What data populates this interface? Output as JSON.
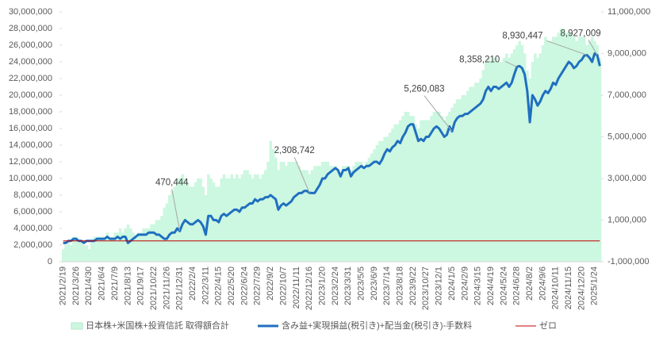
{
  "chart_data": {
    "type": "bar",
    "categories": [
      "2021/2/19",
      null,
      null,
      null,
      null,
      "2021/3/26",
      null,
      null,
      null,
      null,
      "2021/4/30",
      null,
      null,
      null,
      null,
      "2021/6/4",
      null,
      null,
      null,
      null,
      "2021/7/9",
      null,
      null,
      null,
      null,
      "2021/8/13",
      null,
      null,
      null,
      null,
      "2021/9/17",
      null,
      null,
      null,
      null,
      "2021/10/22",
      null,
      null,
      null,
      null,
      "2021/11/26",
      null,
      null,
      null,
      null,
      "2021/12/31",
      null,
      null,
      null,
      null,
      "2022/2/4",
      null,
      null,
      null,
      null,
      "2022/3/11",
      null,
      null,
      null,
      null,
      "2022/4/15",
      null,
      null,
      null,
      null,
      "2022/5/20",
      null,
      null,
      null,
      null,
      "2022/6/24",
      null,
      null,
      null,
      null,
      "2022/7/29",
      null,
      null,
      null,
      null,
      "2022/9/2",
      null,
      null,
      null,
      null,
      "2022/10/7",
      null,
      null,
      null,
      null,
      "2022/11/11",
      null,
      null,
      null,
      null,
      "2022/12/16",
      null,
      null,
      null,
      null,
      "2023/1/20",
      null,
      null,
      null,
      null,
      "2023/2/24",
      null,
      null,
      null,
      null,
      "2023/3/31",
      null,
      null,
      null,
      null,
      "2023/5/5",
      null,
      null,
      null,
      null,
      "2023/6/9",
      null,
      null,
      null,
      null,
      "2023/7/14",
      null,
      null,
      null,
      null,
      "2023/8/18",
      null,
      null,
      null,
      null,
      "2023/9/22",
      null,
      null,
      null,
      null,
      "2023/10/27",
      null,
      null,
      null,
      null,
      "2023/12/1",
      null,
      null,
      null,
      null,
      "2024/1/5",
      null,
      null,
      null,
      null,
      "2024/2/9",
      null,
      null,
      null,
      null,
      "2024/3/15",
      null,
      null,
      null,
      null,
      "2024/4/19",
      null,
      null,
      null,
      null,
      "2024/5/24",
      null,
      null,
      null,
      null,
      "2024/6/28",
      null,
      null,
      null,
      null,
      "2024/8/2",
      null,
      null,
      null,
      null,
      "2024/9/6",
      null,
      null,
      null,
      null,
      "2024/10/11",
      null,
      null,
      null,
      null,
      "2024/11/15",
      null,
      null,
      null,
      null,
      "2024/12/20",
      null,
      null,
      null,
      null,
      "2025/1/24",
      null,
      null
    ],
    "series": [
      {
        "name": "日本株+米国株+投資信託 取得額合計",
        "type": "bar",
        "color": "#ccf7e0",
        "axis": "y",
        "values": [
          1500000,
          2000000,
          2500000,
          2000000,
          3000000,
          3000000,
          2500000,
          2500000,
          2000000,
          2000000,
          1500000,
          2500000,
          3000000,
          3000000,
          3000000,
          3000000,
          3000000,
          3500000,
          3000000,
          3000000,
          3500000,
          3500000,
          4000000,
          3500000,
          4000000,
          4500000,
          4000000,
          3500000,
          3000000,
          3500000,
          3500000,
          4000000,
          4000000,
          4000000,
          4500000,
          4500000,
          5000000,
          5000000,
          5500000,
          6500000,
          7000000,
          8000000,
          8500000,
          9000000,
          10000000,
          10000000,
          10500000,
          10000000,
          9500000,
          9000000,
          9000000,
          9500000,
          10000000,
          10000000,
          9000000,
          8000000,
          10500000,
          10000000,
          9500000,
          9000000,
          9000000,
          10000000,
          10500000,
          10000000,
          10000000,
          10500000,
          10000000,
          10500000,
          10000000,
          10500000,
          11000000,
          11000000,
          10500000,
          10000000,
          10500000,
          10500000,
          10000000,
          10500000,
          11000000,
          12000000,
          14500000,
          13500000,
          12500000,
          11000000,
          12000000,
          12000000,
          11500000,
          12000000,
          12000000,
          12000000,
          12000000,
          11500000,
          11000000,
          11000000,
          11000000,
          10500000,
          11000000,
          11500000,
          11500000,
          11500000,
          12000000,
          12000000,
          12000000,
          11500000,
          11500000,
          11500000,
          11000000,
          10500000,
          11500000,
          11500000,
          11500000,
          11000000,
          11500000,
          12000000,
          12000000,
          12000000,
          11500000,
          12000000,
          12500000,
          13000000,
          13500000,
          14000000,
          14500000,
          14500000,
          15000000,
          15000000,
          15500000,
          16000000,
          16500000,
          16500000,
          17000000,
          17500000,
          18000000,
          18000000,
          17500000,
          17500000,
          16500000,
          16000000,
          17000000,
          17000000,
          17000000,
          17000000,
          17500000,
          18000000,
          18000000,
          18000000,
          17500000,
          17000000,
          17500000,
          18000000,
          18500000,
          19000000,
          19500000,
          19500000,
          20000000,
          20000000,
          20500000,
          21000000,
          21000000,
          21500000,
          21500000,
          22000000,
          23000000,
          24000000,
          24500000,
          24000000,
          24500000,
          24500000,
          24000000,
          24000000,
          24500000,
          25000000,
          24500000,
          25000000,
          25500000,
          26000000,
          26500000,
          26000000,
          25000000,
          23000000,
          22000000,
          24000000,
          25000000,
          24500000,
          25000000,
          26000000,
          27000000,
          26500000,
          26500000,
          27000000,
          27000000,
          27500000,
          28000000,
          28000000,
          27500000,
          27500000,
          27500000,
          27000000,
          26500000,
          27000000,
          27000000,
          27000000,
          26000000,
          26500000,
          27000000,
          26500000,
          26000000,
          24500000
        ]
      },
      {
        "name": "含み益+実現損益(税引き)+配当金(税引き)-手数料",
        "type": "line",
        "color": "#1f6fc0",
        "axis": "y2",
        "values": [
          -100000,
          -100000,
          0,
          0,
          100000,
          100000,
          0,
          0,
          -100000,
          0,
          0,
          0,
          0,
          100000,
          100000,
          100000,
          100000,
          200000,
          100000,
          100000,
          100000,
          200000,
          100000,
          200000,
          200000,
          -100000,
          0,
          100000,
          200000,
          300000,
          300000,
          300000,
          300000,
          400000,
          400000,
          400000,
          300000,
          300000,
          200000,
          100000,
          100000,
          300000,
          400000,
          400000,
          600000,
          470444,
          800000,
          1000000,
          900000,
          800000,
          800000,
          900000,
          1000000,
          900000,
          700000,
          300000,
          1200000,
          1200000,
          1000000,
          1000000,
          900000,
          1200000,
          1300000,
          1200000,
          1300000,
          1400000,
          1500000,
          1500000,
          1400000,
          1600000,
          1600000,
          1700000,
          1800000,
          1800000,
          2000000,
          1900000,
          2000000,
          2000000,
          2100000,
          2100000,
          2200000,
          2100000,
          2000000,
          1500000,
          1700000,
          1800000,
          1700000,
          1800000,
          1900000,
          2100000,
          2200000,
          2300000,
          2300000,
          2400000,
          2400000,
          2308742,
          2300000,
          2300000,
          2500000,
          2700000,
          3000000,
          3000000,
          3200000,
          3300000,
          3400000,
          3500000,
          3400000,
          3100000,
          3400000,
          3400000,
          3500000,
          3100000,
          3300000,
          3400000,
          3500000,
          3600000,
          3500000,
          3600000,
          3600000,
          3700000,
          3800000,
          3800000,
          3700000,
          3900000,
          4200000,
          4400000,
          4300000,
          4500000,
          4600000,
          4800000,
          4700000,
          5000000,
          5200000,
          5500000,
          5600000,
          5600000,
          5200000,
          4800000,
          4900000,
          4800000,
          5000000,
          5000000,
          5200000,
          5400000,
          5500000,
          5400000,
          5200000,
          5000000,
          5100000,
          5500000,
          5260083,
          5700000,
          5900000,
          6000000,
          6000000,
          6100000,
          6100000,
          6200000,
          6300000,
          6400000,
          6500000,
          6600000,
          6800000,
          7200000,
          7400000,
          7200000,
          7400000,
          7400000,
          7300000,
          7400000,
          7500000,
          7600000,
          7400000,
          7600000,
          8000000,
          8358210,
          8400000,
          8300000,
          8000000,
          7200000,
          5700000,
          7000000,
          6800000,
          6500000,
          6700000,
          7000000,
          7200000,
          7100000,
          7300000,
          7600000,
          7500000,
          7800000,
          8000000,
          8200000,
          8400000,
          8600000,
          8500000,
          8300000,
          8400000,
          8600000,
          8700000,
          8900000,
          8930447,
          8800000,
          8600000,
          9000000,
          8927009,
          8400000
        ]
      },
      {
        "name": "ゼロ",
        "type": "line",
        "color": "#c00000",
        "axis": "y2",
        "values": [
          0,
          0,
          0,
          0,
          0,
          0,
          0,
          0,
          0,
          0,
          0,
          0,
          0,
          0,
          0,
          0,
          0,
          0,
          0,
          0,
          0,
          0,
          0,
          0,
          0,
          0,
          0,
          0,
          0,
          0,
          0,
          0,
          0,
          0,
          0,
          0,
          0,
          0,
          0,
          0,
          0,
          0,
          0,
          0,
          0,
          0,
          0,
          0,
          0,
          0,
          0,
          0,
          0,
          0,
          0,
          0,
          0,
          0,
          0,
          0,
          0,
          0,
          0,
          0,
          0,
          0,
          0,
          0,
          0,
          0,
          0,
          0,
          0,
          0,
          0,
          0,
          0,
          0,
          0,
          0,
          0,
          0,
          0,
          0,
          0,
          0,
          0,
          0,
          0,
          0,
          0,
          0,
          0,
          0,
          0,
          0,
          0,
          0,
          0,
          0,
          0,
          0,
          0,
          0,
          0,
          0,
          0,
          0,
          0,
          0,
          0,
          0,
          0,
          0,
          0,
          0,
          0,
          0,
          0,
          0,
          0,
          0,
          0,
          0,
          0,
          0,
          0,
          0,
          0,
          0,
          0,
          0,
          0,
          0,
          0,
          0,
          0,
          0,
          0,
          0,
          0,
          0,
          0,
          0,
          0,
          0,
          0,
          0,
          0,
          0,
          0,
          0,
          0,
          0,
          0,
          0,
          0,
          0,
          0,
          0,
          0,
          0,
          0,
          0,
          0,
          0,
          0,
          0,
          0,
          0,
          0,
          0,
          0,
          0,
          0,
          0,
          0,
          0,
          0,
          0,
          0,
          0,
          0,
          0,
          0,
          0,
          0,
          0,
          0,
          0,
          0,
          0,
          0,
          0,
          0,
          0,
          0,
          0,
          0,
          0,
          0,
          0,
          0,
          0,
          0,
          0,
          0,
          0
        ]
      }
    ],
    "annotations": [
      {
        "text": "470,444",
        "series": 1,
        "index": 45
      },
      {
        "text": "2,308,742",
        "series": 1,
        "index": 95
      },
      {
        "text": "5,260,083",
        "series": 1,
        "index": 150
      },
      {
        "text": "8,358,210",
        "series": 1,
        "index": 175
      },
      {
        "text": "8,930,447",
        "series": 1,
        "index": 202
      },
      {
        "text": "8,927,009",
        "series": 1,
        "index": 206
      }
    ],
    "ylim": [
      0,
      30000000
    ],
    "yticks": [
      {
        "value": 0,
        "label": "0"
      },
      {
        "value": 2000000,
        "label": "2,000,000"
      },
      {
        "value": 4000000,
        "label": "4,000,000"
      },
      {
        "value": 6000000,
        "label": "6,000,000"
      },
      {
        "value": 8000000,
        "label": "8,000,000"
      },
      {
        "value": 10000000,
        "label": "10,000,000"
      },
      {
        "value": 12000000,
        "label": "12,000,000"
      },
      {
        "value": 14000000,
        "label": "14,000,000"
      },
      {
        "value": 16000000,
        "label": "16,000,000"
      },
      {
        "value": 18000000,
        "label": "18,000,000"
      },
      {
        "value": 20000000,
        "label": "20,000,000"
      },
      {
        "value": 22000000,
        "label": "22,000,000"
      },
      {
        "value": 24000000,
        "label": "24,000,000"
      },
      {
        "value": 26000000,
        "label": "26,000,000"
      },
      {
        "value": 28000000,
        "label": "28,000,000"
      },
      {
        "value": 30000000,
        "label": "30,000,000"
      }
    ],
    "y2lim": [
      -1000000,
      11000000
    ],
    "y2ticks": [
      {
        "value": -1000000,
        "label": "-1,000,000"
      },
      {
        "value": 1000000,
        "label": "1,000,000"
      },
      {
        "value": 3000000,
        "label": "3,000,000"
      },
      {
        "value": 5000000,
        "label": "5,000,000"
      },
      {
        "value": 7000000,
        "label": "7,000,000"
      },
      {
        "value": 9000000,
        "label": "9,000,000"
      },
      {
        "value": 11000000,
        "label": "11,000,000"
      }
    ],
    "grid": false,
    "legend": "bottom"
  }
}
